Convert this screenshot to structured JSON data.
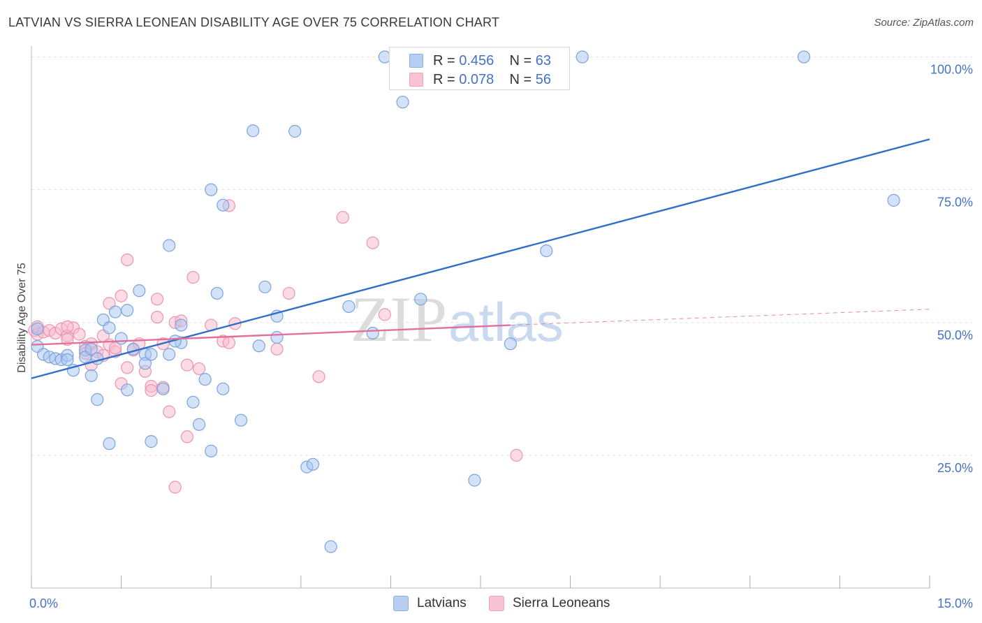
{
  "title": "LATVIAN VS SIERRA LEONEAN DISABILITY AGE OVER 75 CORRELATION CHART",
  "source": "Source: ZipAtlas.com",
  "watermark": {
    "zip": "ZIP",
    "atlas": "atlas"
  },
  "colors": {
    "latvians_fill": "#a9c6f0",
    "latvians_stroke": "#7aa3e0",
    "latvians_line": "#2f6fc9",
    "sierra_fill": "#f7b9cc",
    "sierra_stroke": "#ee93b0",
    "sierra_line": "#e0719b",
    "grid": "#e3e3e3",
    "tick_text": "#4472c4"
  },
  "legend": {
    "rows": [
      {
        "r_label": "R = ",
        "r_value": "0.456",
        "n_label": "N = ",
        "n_value": "63"
      },
      {
        "r_label": "R = ",
        "r_value": "0.078",
        "n_label": "N = ",
        "n_value": "56"
      }
    ]
  },
  "bottom_legend": {
    "latvians": "Latvians",
    "sierra": "Sierra Leoneans"
  },
  "chart_data": {
    "type": "scatter",
    "title": "LATVIAN VS SIERRA LEONEAN DISABILITY AGE OVER 75 CORRELATION CHART",
    "xlabel": "",
    "ylabel": "Disability Age Over 75",
    "xlim": [
      0,
      15
    ],
    "ylim": [
      0,
      100
    ],
    "x_tick_labels": [
      "0.0%",
      "15.0%"
    ],
    "y_ticks": [
      25,
      50,
      75,
      100
    ],
    "y_tick_labels": [
      "25.0%",
      "50.0%",
      "75.0%",
      "100.0%"
    ],
    "grid": true,
    "legend_position": "top-center",
    "series": [
      {
        "name": "Latvians",
        "points": [
          [
            0.1,
            48.8
          ],
          [
            0.1,
            45.5
          ],
          [
            0.2,
            44.0
          ],
          [
            0.3,
            43.5
          ],
          [
            0.4,
            43.2
          ],
          [
            0.5,
            43.0
          ],
          [
            0.6,
            43.8
          ],
          [
            0.7,
            41.0
          ],
          [
            0.9,
            44.8
          ],
          [
            0.9,
            43.5
          ],
          [
            1.0,
            45.0
          ],
          [
            1.0,
            40.0
          ],
          [
            1.1,
            43.2
          ],
          [
            1.1,
            35.5
          ],
          [
            1.2,
            50.5
          ],
          [
            1.3,
            27.2
          ],
          [
            1.3,
            49.0
          ],
          [
            1.4,
            52.0
          ],
          [
            1.5,
            47.0
          ],
          [
            1.6,
            52.3
          ],
          [
            1.6,
            37.3
          ],
          [
            1.7,
            45.0
          ],
          [
            1.8,
            56.0
          ],
          [
            1.9,
            44.0
          ],
          [
            1.9,
            42.3
          ],
          [
            2.0,
            44.0
          ],
          [
            2.0,
            27.6
          ],
          [
            2.2,
            37.5
          ],
          [
            2.3,
            44.0
          ],
          [
            2.3,
            64.5
          ],
          [
            2.5,
            46.2
          ],
          [
            2.5,
            49.5
          ],
          [
            2.7,
            35.0
          ],
          [
            2.8,
            30.8
          ],
          [
            2.9,
            39.3
          ],
          [
            3.0,
            75.0
          ],
          [
            3.0,
            25.8
          ],
          [
            3.1,
            55.5
          ],
          [
            3.2,
            37.5
          ],
          [
            3.2,
            72.1
          ],
          [
            3.5,
            31.6
          ],
          [
            3.7,
            86.1
          ],
          [
            3.8,
            45.6
          ],
          [
            3.9,
            56.7
          ],
          [
            4.1,
            47.2
          ],
          [
            4.1,
            51.2
          ],
          [
            4.4,
            86.0
          ],
          [
            4.6,
            22.8
          ],
          [
            4.7,
            23.3
          ],
          [
            5.0,
            7.8
          ],
          [
            5.3,
            53.0
          ],
          [
            5.7,
            48.0
          ],
          [
            5.9,
            100.0
          ],
          [
            6.2,
            91.5
          ],
          [
            6.5,
            54.4
          ],
          [
            7.4,
            20.3
          ],
          [
            8.0,
            46.0
          ],
          [
            8.6,
            63.5
          ],
          [
            9.2,
            100.0
          ],
          [
            12.9,
            100.0
          ],
          [
            14.4,
            73.0
          ],
          [
            2.4,
            46.5
          ],
          [
            0.6,
            43.0
          ]
        ]
      },
      {
        "name": "Sierra Leoneans",
        "points": [
          [
            0.05,
            48.5
          ],
          [
            0.1,
            47.8
          ],
          [
            0.1,
            49.2
          ],
          [
            0.2,
            48.2
          ],
          [
            0.3,
            48.5
          ],
          [
            0.4,
            48.0
          ],
          [
            0.5,
            48.8
          ],
          [
            0.6,
            47.5
          ],
          [
            0.6,
            46.8
          ],
          [
            0.7,
            49.0
          ],
          [
            0.8,
            47.8
          ],
          [
            0.9,
            45.5
          ],
          [
            0.9,
            44.2
          ],
          [
            1.0,
            46.0
          ],
          [
            1.0,
            42.0
          ],
          [
            1.1,
            44.5
          ],
          [
            1.2,
            47.5
          ],
          [
            1.2,
            43.8
          ],
          [
            1.3,
            45.8
          ],
          [
            1.3,
            53.6
          ],
          [
            1.4,
            44.5
          ],
          [
            1.5,
            55.0
          ],
          [
            1.5,
            38.5
          ],
          [
            1.6,
            61.8
          ],
          [
            1.6,
            41.5
          ],
          [
            1.7,
            44.8
          ],
          [
            1.8,
            46.0
          ],
          [
            1.9,
            40.8
          ],
          [
            2.0,
            38.0
          ],
          [
            2.0,
            37.2
          ],
          [
            2.1,
            54.4
          ],
          [
            2.1,
            51.0
          ],
          [
            2.2,
            46.0
          ],
          [
            2.3,
            33.2
          ],
          [
            2.4,
            50.0
          ],
          [
            2.4,
            19.0
          ],
          [
            2.5,
            50.3
          ],
          [
            2.6,
            42.0
          ],
          [
            2.6,
            28.5
          ],
          [
            2.7,
            58.5
          ],
          [
            2.8,
            41.3
          ],
          [
            3.0,
            49.5
          ],
          [
            3.2,
            46.5
          ],
          [
            3.3,
            46.2
          ],
          [
            3.3,
            72.0
          ],
          [
            3.4,
            49.8
          ],
          [
            4.1,
            45.0
          ],
          [
            4.3,
            55.5
          ],
          [
            4.8,
            39.8
          ],
          [
            5.2,
            69.8
          ],
          [
            5.7,
            65.0
          ],
          [
            5.9,
            51.5
          ],
          [
            8.1,
            25.0
          ],
          [
            0.6,
            49.2
          ],
          [
            1.4,
            45.2
          ],
          [
            2.2,
            37.8
          ]
        ]
      }
    ],
    "trend_lines": [
      {
        "series": "Latvians",
        "x": [
          0,
          15
        ],
        "y": [
          39.5,
          84.5
        ],
        "style": "solid"
      },
      {
        "series": "Sierra Leoneans",
        "x": [
          0,
          8.0
        ],
        "y": [
          45.8,
          49.5
        ],
        "style": "solid"
      },
      {
        "series": "Sierra Leoneans",
        "x": [
          8.0,
          15
        ],
        "y": [
          49.5,
          52.5
        ],
        "style": "dashed"
      }
    ]
  }
}
